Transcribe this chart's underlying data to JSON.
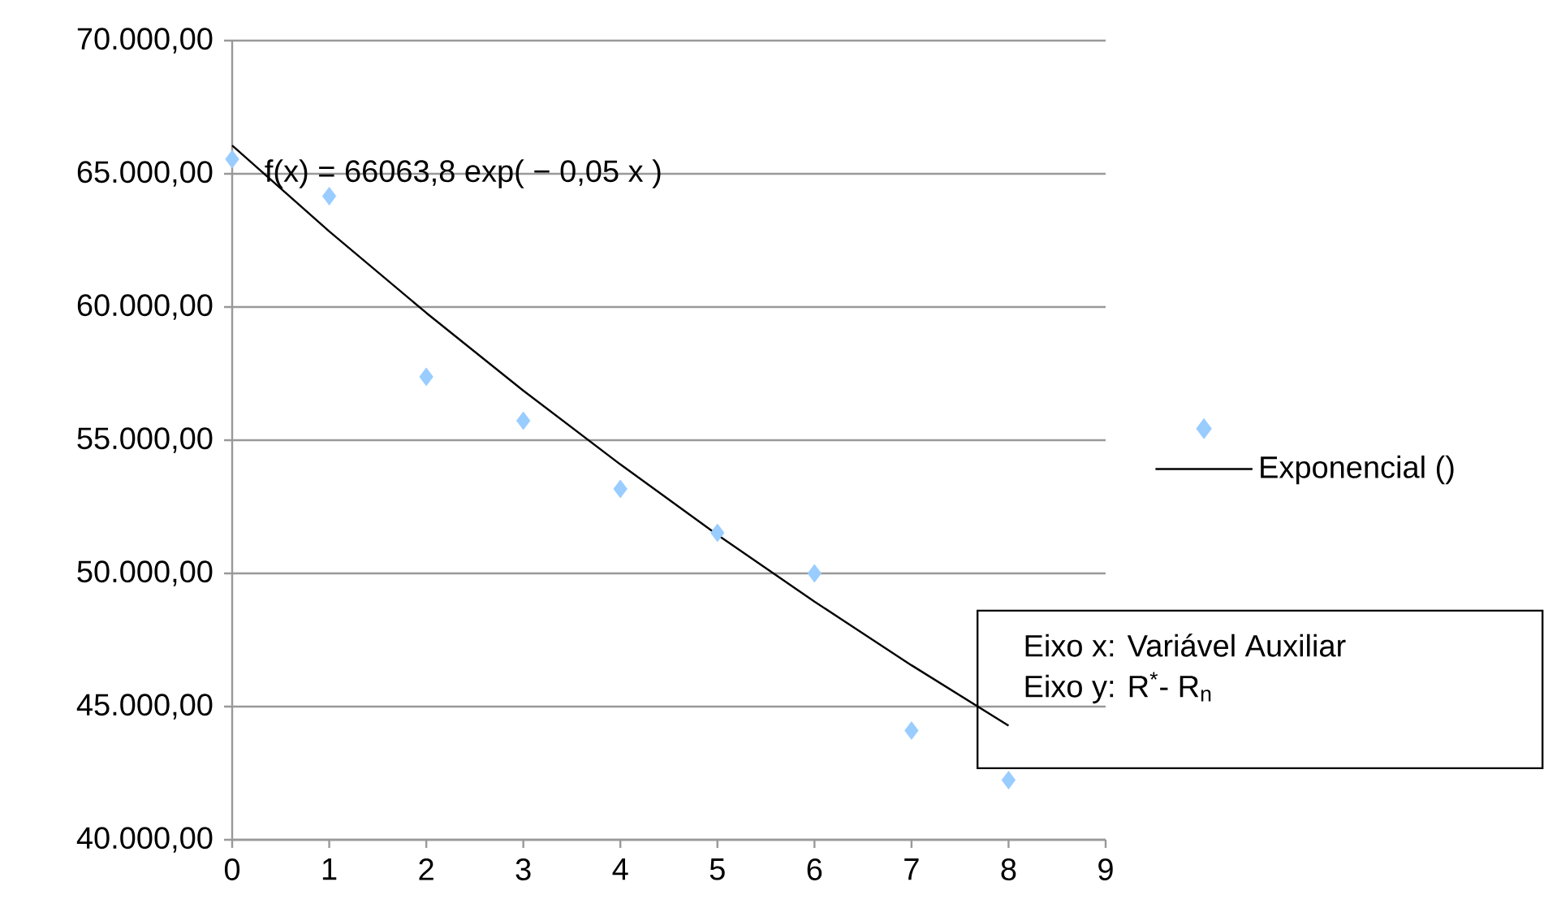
{
  "chart_data": {
    "type": "scatter",
    "x": [
      0,
      1,
      2,
      3,
      4,
      5,
      6,
      7,
      8
    ],
    "series": [
      {
        "color": "#99ccff",
        "values": [
          65550,
          64160,
          57380,
          55730,
          53170,
          51520,
          50000,
          44100,
          42240
        ],
        "marker": "diamond"
      },
      {
        "type": "line",
        "name": "Exponencial ()",
        "color": "#000000",
        "x": [
          0,
          1,
          2,
          3,
          4,
          5,
          6,
          7,
          8
        ],
        "values": [
          66060,
          62840,
          59780,
          56860,
          54090,
          51450,
          48940,
          46550,
          44280
        ],
        "marker": "none",
        "line_style": "solid"
      }
    ],
    "xlim": [
      0,
      9
    ],
    "xticks": [
      0,
      1,
      2,
      3,
      4,
      5,
      6,
      7,
      8,
      9
    ],
    "ylim": [
      40000,
      70000
    ],
    "yticks": [
      {
        "value": 40000,
        "label": "40.000,00"
      },
      {
        "value": 45000,
        "label": "45.000,00"
      },
      {
        "value": 50000,
        "label": "50.000,00"
      },
      {
        "value": 55000,
        "label": "55.000,00"
      },
      {
        "value": 60000,
        "label": "60.000,00"
      },
      {
        "value": 65000,
        "label": "65.000,00"
      },
      {
        "value": 70000,
        "label": "70.000,00"
      }
    ],
    "grid": "y",
    "legend": "right",
    "annotations": [
      "f(x) = 66063,8 exp( − 0,05 x )",
      "Eixo x: Variável Auxiliar",
      "Eixo y: R$^{*}$- R$_{n}$"
    ]
  }
}
